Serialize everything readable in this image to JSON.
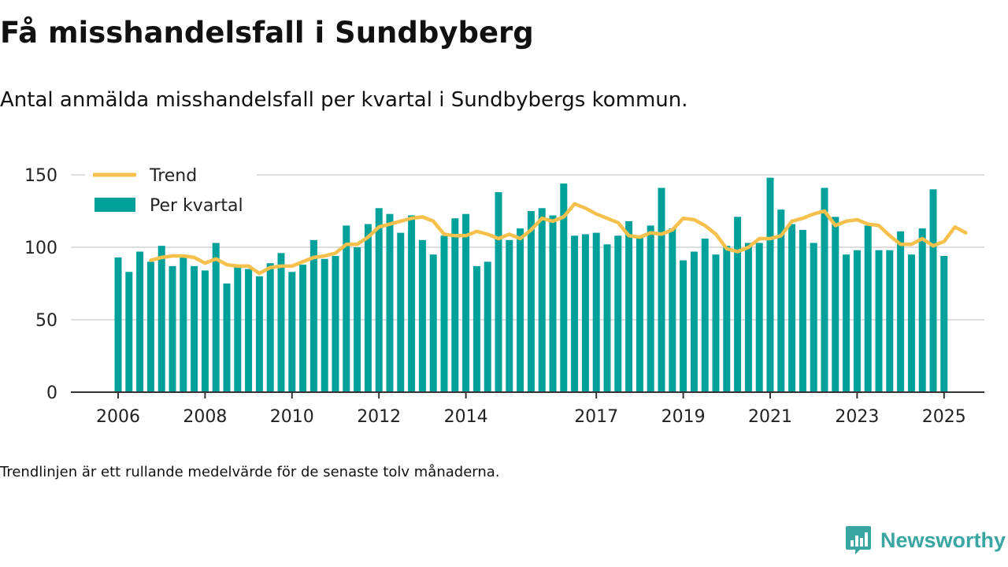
{
  "header": {
    "title": "Få misshandelsfall i Sundbyberg",
    "subtitle": "Antal anmälda misshandelsfall per kvartal i Sundbybergs kommun."
  },
  "footer": {
    "note": "Trendlinjen är ett rullande medelvärde för de senaste tolv månaderna.",
    "brand": "Newsworthy"
  },
  "colors": {
    "bar": "#00a19a",
    "trend": "#f6c04d",
    "grid": "#dddddd",
    "axis": "#333333",
    "brand": "#3aa6a1"
  },
  "chart_data": {
    "type": "bar",
    "ylim": [
      0,
      150
    ],
    "yticks": [
      0,
      50,
      100,
      150
    ],
    "xtick_labels": [
      "2006",
      "2008",
      "2010",
      "2012",
      "2014",
      "2017",
      "2019",
      "2021",
      "2023",
      "2025"
    ],
    "xtick_index": [
      0,
      8,
      16,
      24,
      32,
      44,
      52,
      60,
      68,
      76
    ],
    "legend": {
      "position": "top-left",
      "trend_label": "Trend",
      "bar_label": "Per kvartal"
    },
    "series": [
      {
        "name": "Per kvartal",
        "type": "bar",
        "values": [
          93,
          83,
          97,
          90,
          101,
          87,
          94,
          87,
          84,
          103,
          75,
          87,
          85,
          80,
          89,
          96,
          83,
          88,
          105,
          92,
          94,
          115,
          100,
          116,
          127,
          123,
          110,
          122,
          105,
          95,
          108,
          120,
          123,
          87,
          90,
          138,
          105,
          113,
          125,
          127,
          122,
          144,
          108,
          109,
          110,
          102,
          108,
          118,
          107,
          115,
          141,
          113,
          91,
          97,
          106,
          95,
          101,
          121,
          103,
          103,
          148,
          126,
          116,
          112,
          103,
          141,
          121,
          95,
          98,
          115,
          98,
          98,
          111,
          95,
          113,
          140,
          94
        ]
      },
      {
        "name": "Trend",
        "type": "line",
        "start_index": 3,
        "values": [
          91,
          93,
          94,
          94,
          93,
          89,
          92,
          88,
          87,
          87,
          82,
          86,
          87,
          87,
          90,
          93,
          94,
          96,
          102,
          102,
          107,
          114,
          116,
          118,
          120,
          121,
          118,
          109,
          108,
          108,
          111,
          109,
          106,
          109,
          106,
          112,
          120,
          118,
          121,
          130,
          127,
          123,
          120,
          117,
          108,
          107,
          110,
          109,
          112,
          120,
          119,
          115,
          109,
          99,
          97,
          100,
          106,
          106,
          108,
          118,
          120,
          123,
          125,
          115,
          118,
          119,
          116,
          115,
          108,
          102,
          102,
          106,
          101,
          104,
          114,
          110
        ]
      }
    ]
  }
}
